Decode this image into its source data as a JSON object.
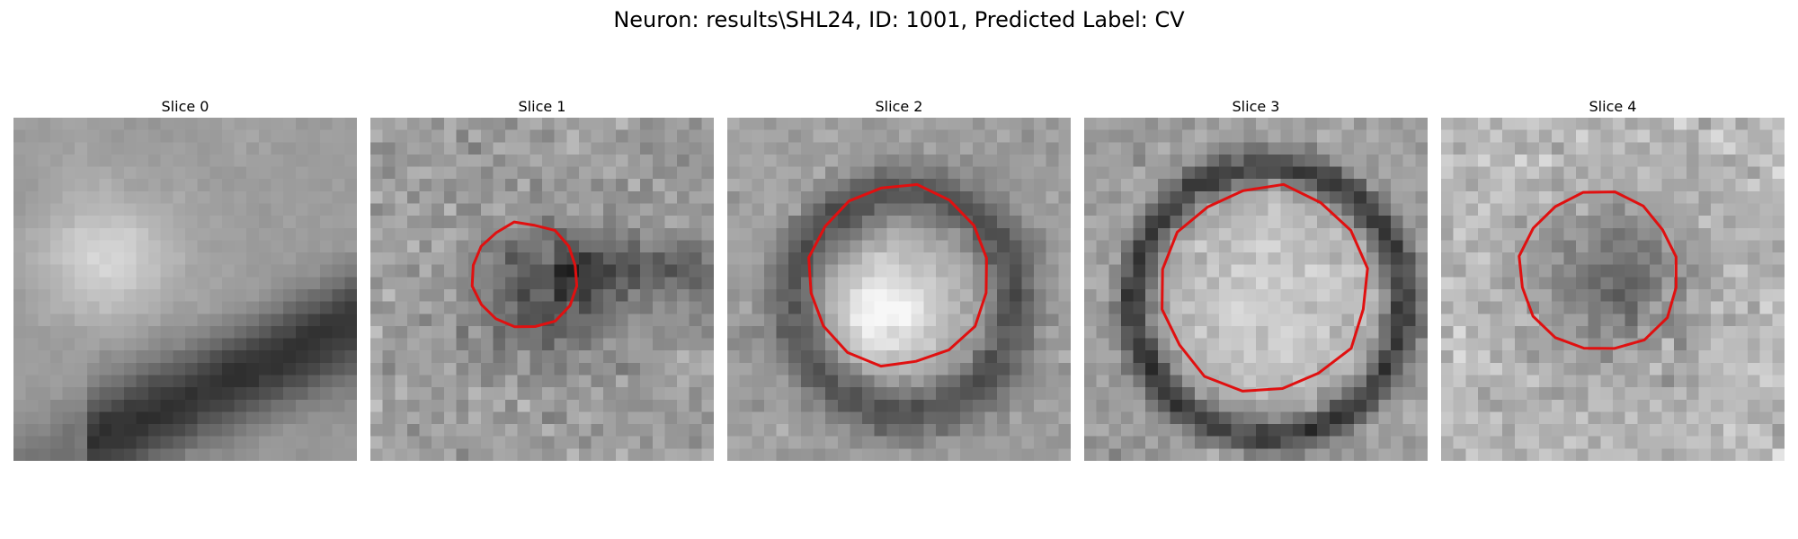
{
  "figure": {
    "title": "Neuron: results\\SHL24, ID: 1001, Predicted Label: CV",
    "contour_color": "#e01010",
    "colormap": "grayscale",
    "grid_size": 28
  },
  "slices": [
    {
      "title": "Slice 0",
      "contour": false,
      "pattern": "blurry-band",
      "contour_shape": "none",
      "contour_fill": "none"
    },
    {
      "title": "Slice 1",
      "contour": true,
      "pattern": "noisy-small-dark-blob",
      "contour_shape": "small-octagon",
      "contour_fill": "dark"
    },
    {
      "title": "Slice 2",
      "contour": true,
      "pattern": "bright-core-dark-ring",
      "contour_shape": "medium-octagon",
      "contour_fill": "bright"
    },
    {
      "title": "Slice 3",
      "contour": true,
      "pattern": "large-bright-disk-dark-rim",
      "contour_shape": "large-octagon",
      "contour_fill": "bright"
    },
    {
      "title": "Slice 4",
      "contour": true,
      "pattern": "noisy-medium-dark-blob",
      "contour_shape": "medium-octagon",
      "contour_fill": "dark"
    }
  ]
}
